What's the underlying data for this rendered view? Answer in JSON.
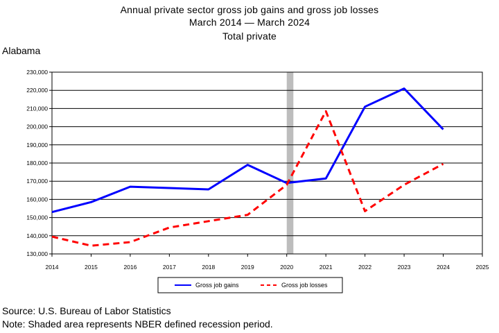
{
  "title": {
    "line1": "Annual private sector gross job gains and gross job losses",
    "line2": "March 2014 — March 2024",
    "line3": "Total private"
  },
  "region": "Alabama",
  "footer": {
    "source": "Source: U.S. Bureau of Labor Statistics",
    "note": "Note: Shaded area represents NBER defined recession period."
  },
  "chart_data": {
    "type": "line",
    "title": "Annual private sector gross job gains and gross job losses",
    "xlabel": "",
    "ylabel": "",
    "xlim": [
      2014,
      2025
    ],
    "ylim": [
      130000,
      230000
    ],
    "x_ticks": [
      "2014",
      "2015",
      "2016",
      "2017",
      "2018",
      "2019",
      "2020",
      "2021",
      "2022",
      "2023",
      "2024",
      "2025"
    ],
    "y_ticks": [
      "130,000",
      "140,000",
      "150,000",
      "160,000",
      "170,000",
      "180,000",
      "190,000",
      "200,000",
      "210,000",
      "220,000",
      "230,000"
    ],
    "grid": true,
    "legend_position": "bottom",
    "recession_band": {
      "start": 2020.0,
      "end": 2020.17,
      "color": "#bdbdbd"
    },
    "series": [
      {
        "name": "Gross job gains",
        "color": "#0000ff",
        "dash": "solid",
        "x": [
          2014,
          2015,
          2016,
          2018,
          2019,
          2020,
          2021,
          2022,
          2023,
          2024
        ],
        "y": [
          153000,
          158500,
          167000,
          165500,
          179000,
          169000,
          171500,
          211000,
          221000,
          198500
        ]
      },
      {
        "name": "Gross job losses",
        "color": "#ff0000",
        "dash": "dashed",
        "x": [
          2014,
          2015,
          2016,
          2017,
          2018,
          2019,
          2020,
          2021,
          2022,
          2023,
          2024
        ],
        "y": [
          139500,
          134500,
          136500,
          144500,
          148000,
          151500,
          168000,
          208500,
          153500,
          168000,
          179500
        ]
      }
    ]
  }
}
